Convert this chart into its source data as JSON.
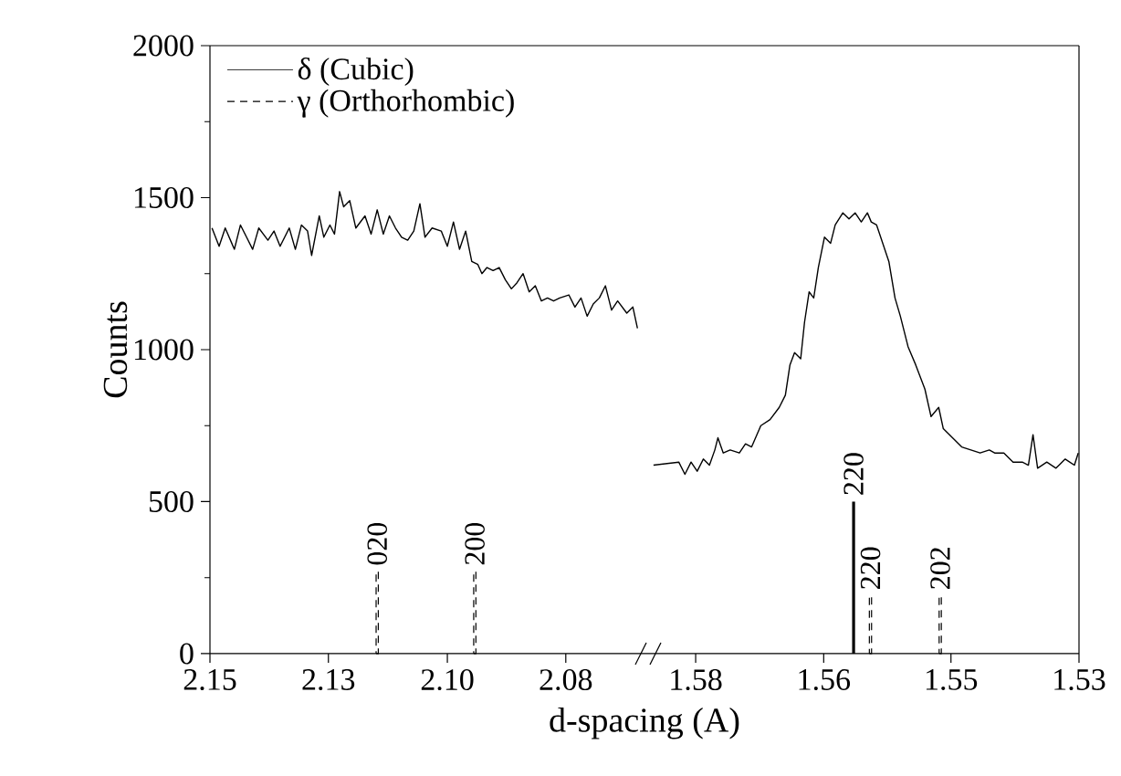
{
  "chart_data": [
    {
      "type": "line",
      "xlabel": "d-spacing (A)",
      "ylabel": "Counts",
      "xlim": [
        2.15,
        2.0638
      ],
      "ylim": [
        0,
        2000
      ],
      "xticks": [
        {
          "value": 2.15,
          "label": "2.15"
        },
        {
          "value": 2.1267,
          "label": "2.13"
        },
        {
          "value": 2.1033,
          "label": "2.10"
        },
        {
          "value": 2.08,
          "label": "2.08"
        }
      ],
      "yticks": [
        0,
        500,
        1000,
        1500,
        2000
      ],
      "marker": "none",
      "annotations": [
        {
          "text": "020",
          "x": 2.1171,
          "y": 270
        },
        {
          "text": "200",
          "x": 2.0979,
          "y": 270
        }
      ],
      "series": [
        {
          "color": "#000000",
          "line_style": "solid",
          "x": [
            2.1496,
            2.1482,
            2.147,
            2.1452,
            2.144,
            2.1428,
            2.1416,
            2.1404,
            2.1386,
            2.1374,
            2.1362,
            2.1344,
            2.1332,
            2.132,
            2.1308,
            2.13,
            2.1285,
            2.1276,
            2.1264,
            2.1255,
            2.1245,
            2.1237,
            2.1225,
            2.1213,
            2.1195,
            2.1183,
            2.1171,
            2.1159,
            2.1147,
            2.1135,
            2.1123,
            2.1111,
            2.1099,
            2.1087,
            2.1077,
            2.1063,
            2.1045,
            2.1033,
            2.1021,
            2.1009,
            2.0997,
            2.0985,
            2.0973,
            2.0965,
            2.0955,
            2.0943,
            2.0931,
            2.0919,
            2.0907,
            2.0896,
            2.0884,
            2.0872,
            2.086,
            2.0848,
            2.0836,
            2.0824,
            2.0812,
            2.0794,
            2.0782,
            2.077,
            2.0758,
            2.0746,
            2.0734,
            2.0722,
            2.071,
            2.0698,
            2.068,
            2.0668,
            2.0659
          ],
          "values": [
            1400,
            1340,
            1400,
            1330,
            1410,
            1370,
            1330,
            1400,
            1360,
            1390,
            1340,
            1400,
            1330,
            1410,
            1390,
            1310,
            1440,
            1370,
            1410,
            1380,
            1520,
            1470,
            1490,
            1400,
            1440,
            1380,
            1460,
            1380,
            1440,
            1400,
            1370,
            1360,
            1390,
            1480,
            1370,
            1400,
            1390,
            1340,
            1420,
            1330,
            1390,
            1290,
            1280,
            1250,
            1270,
            1260,
            1270,
            1230,
            1200,
            1220,
            1250,
            1190,
            1210,
            1160,
            1170,
            1160,
            1170,
            1180,
            1140,
            1170,
            1110,
            1150,
            1170,
            1210,
            1130,
            1160,
            1120,
            1140,
            1070
          ]
        },
        {
          "type": "bar",
          "color": "#000000",
          "line_style": "dashed",
          "x": [
            2.1171,
            2.0979
          ],
          "values": [
            270,
            270
          ]
        }
      ]
    },
    {
      "type": "line",
      "xlim": [
        1.5862,
        1.53
      ],
      "ylim": [
        0,
        2000
      ],
      "tick_labels": "x",
      "legend": "top left",
      "marker": "none",
      "xticks": [
        {
          "value": 1.58,
          "label": "1.58"
        },
        {
          "value": 1.5633,
          "label": "1.56"
        },
        {
          "value": 1.5467,
          "label": "1.55"
        },
        {
          "value": 1.53,
          "label": "1.53"
        }
      ],
      "annotations": [
        {
          "text": "220",
          "x": 1.5594,
          "y": 500
        },
        {
          "text": "220",
          "x": 1.5572,
          "y": 190
        },
        {
          "text": "202",
          "x": 1.5481,
          "y": 190
        }
      ],
      "series": [
        {
          "color": "#000000",
          "line_style": "solid",
          "x": [
            1.5855,
            1.5822,
            1.5814,
            1.5806,
            1.5798,
            1.579,
            1.5782,
            1.5775,
            1.5771,
            1.5764,
            1.5755,
            1.5743,
            1.5735,
            1.5727,
            1.5715,
            1.5703,
            1.5691,
            1.5683,
            1.5677,
            1.5671,
            1.5663,
            1.5658,
            1.5652,
            1.5646,
            1.564,
            1.5632,
            1.5624,
            1.5618,
            1.5608,
            1.56,
            1.5592,
            1.5584,
            1.5576,
            1.5571,
            1.5564,
            1.5556,
            1.5548,
            1.554,
            1.5533,
            1.5523,
            1.5513,
            1.5501,
            1.5493,
            1.5483,
            1.5477,
            1.5465,
            1.5453,
            1.5441,
            1.5429,
            1.5417,
            1.541,
            1.5398,
            1.5386,
            1.5374,
            1.5366,
            1.536,
            1.5354,
            1.5342,
            1.533,
            1.5318,
            1.5306,
            1.5301
          ],
          "values": [
            620,
            630,
            590,
            630,
            600,
            640,
            620,
            670,
            710,
            660,
            670,
            660,
            690,
            680,
            750,
            770,
            810,
            850,
            950,
            990,
            970,
            1090,
            1190,
            1170,
            1270,
            1370,
            1350,
            1410,
            1450,
            1430,
            1450,
            1420,
            1450,
            1420,
            1410,
            1350,
            1290,
            1170,
            1110,
            1010,
            950,
            870,
            780,
            810,
            740,
            710,
            680,
            670,
            660,
            670,
            660,
            660,
            630,
            630,
            620,
            720,
            610,
            630,
            610,
            640,
            620,
            660
          ]
        },
        {
          "type": "bar",
          "name": "δ (Cubic)",
          "color": "#000000",
          "line_style": "solid",
          "x": [
            1.5594
          ],
          "values": [
            500
          ]
        },
        {
          "type": "bar",
          "name": "γ (Orthorhombic)",
          "color": "#000000",
          "line_style": "dashed",
          "x": [
            1.5572,
            1.5481
          ],
          "values": [
            190,
            190
          ]
        }
      ]
    }
  ]
}
